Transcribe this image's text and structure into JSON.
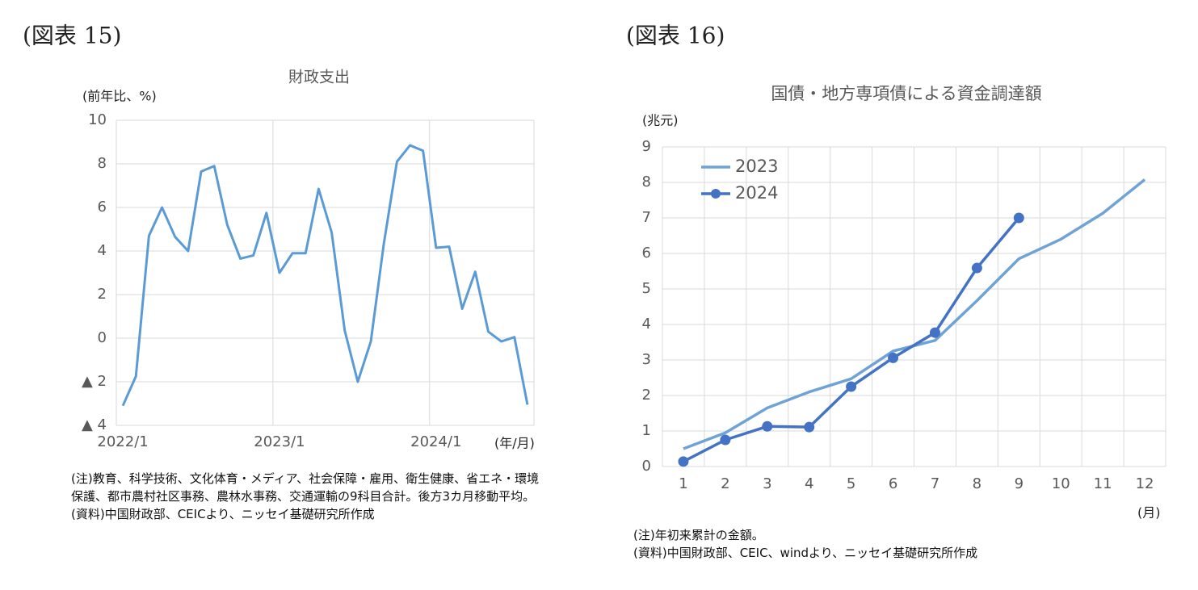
{
  "chart_data": [
    {
      "type": "line",
      "figure_label": "(図表 15)",
      "title": "財政支出",
      "y_label": "(前年比、%)",
      "x_label": "(年/月)",
      "categories": [
        "2022/1",
        null,
        null,
        null,
        null,
        null,
        null,
        null,
        null,
        null,
        null,
        null,
        "2023/1",
        null,
        null,
        null,
        null,
        null,
        null,
        null,
        null,
        null,
        null,
        null,
        "2024/1",
        null,
        null,
        null,
        null,
        null,
        null,
        null
      ],
      "series": [
        {
          "name": "財政支出",
          "color": "#5b9bd5",
          "marker": null,
          "values": [
            -3.1,
            -1.75,
            4.7,
            6.0,
            4.65,
            4.0,
            7.65,
            7.9,
            5.2,
            3.65,
            3.8,
            5.75,
            3.0,
            3.9,
            3.9,
            6.85,
            4.85,
            0.35,
            -2.0,
            -0.15,
            4.35,
            8.1,
            8.85,
            8.6,
            4.15,
            4.2,
            1.35,
            3.05,
            0.3,
            -0.15,
            0.05,
            -3.05
          ]
        }
      ],
      "ylim": [
        -4,
        10
      ],
      "yticks": [
        {
          "value": -4,
          "label": "▲ 4"
        },
        {
          "value": -2,
          "label": "▲ 2"
        },
        0,
        2,
        4,
        6,
        8,
        10
      ],
      "grid": true,
      "legend": false,
      "notes": [
        "(注)教育、科学技術、文化体育・メディア、社会保障・雇用、衛生健康、省エネ・環境保護、都市農村社区事務、農林水事務、交通運輸の9科目合計。後方3カ月移動平均。",
        "(資料)中国財政部、CEICより、ニッセイ基礎研究所作成"
      ]
    },
    {
      "type": "line",
      "figure_label": "(図表 16)",
      "title": "国債・地方専項債による資金調達額",
      "y_label": "(兆元)",
      "x_label": "(月)",
      "categories": [
        "1",
        "2",
        "3",
        "4",
        "5",
        "6",
        "7",
        "8",
        "9",
        "10",
        "11",
        "12"
      ],
      "series": [
        {
          "name": "2023",
          "color": "#6fa3d6",
          "marker": null,
          "values": [
            0.5,
            0.95,
            1.65,
            2.1,
            2.47,
            3.25,
            3.55,
            4.67,
            5.85,
            6.4,
            7.13,
            8.08
          ]
        },
        {
          "name": "2024",
          "color": "#4472c4",
          "marker": "circle",
          "values": [
            0.14,
            0.75,
            1.13,
            1.11,
            2.25,
            3.06,
            3.77,
            5.59,
            7.0,
            null,
            null,
            null
          ]
        }
      ],
      "ylim": [
        0,
        9
      ],
      "yticks": [
        0,
        1,
        2,
        3,
        4,
        5,
        6,
        7,
        8,
        9
      ],
      "grid": true,
      "legend": "upper left",
      "notes": [
        "(注)年初来累計の金額。",
        "(資料)中国財政部、CEIC、windより、ニッセイ基礎研究所作成"
      ]
    }
  ]
}
